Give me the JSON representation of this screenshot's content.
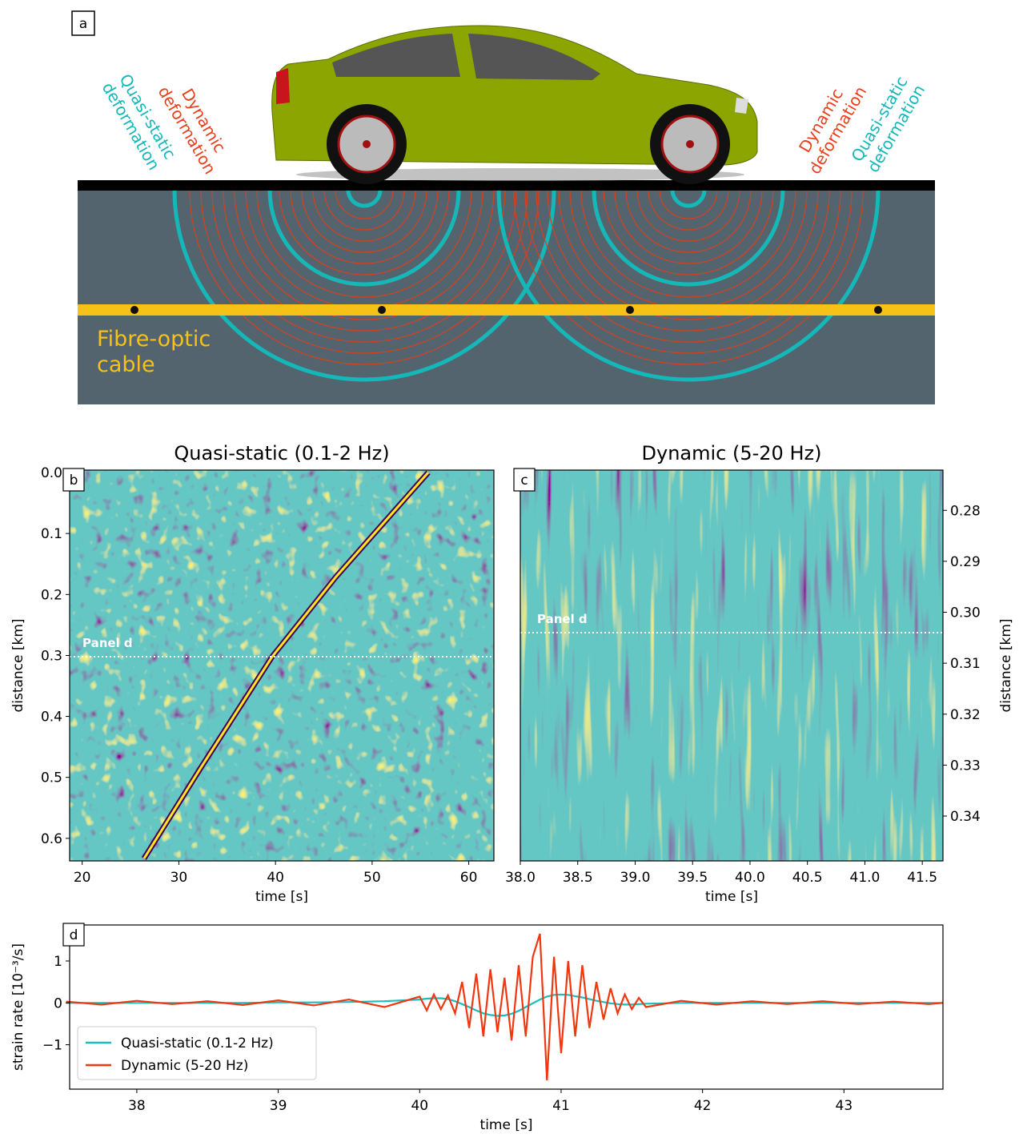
{
  "diagram": {
    "panel_label": "a",
    "left_quasi_static": [
      "Quasi-static",
      "deformation"
    ],
    "left_dynamic": [
      "Dynamic",
      "deformation"
    ],
    "right_dynamic": [
      "Dynamic",
      "deformation"
    ],
    "right_quasi_static": [
      "Quasi-static",
      "deformation"
    ],
    "cable": [
      "Fibre-optic",
      "cable"
    ]
  },
  "chart_data": [
    {
      "type": "heatmap",
      "panel_label": "b",
      "title": "Quasi-static (0.1-2 Hz)",
      "x_label": "time [s]",
      "y_label": "distance [km]",
      "xlim": [
        18.7,
        62.6
      ],
      "xticks": [
        20,
        30,
        40,
        50,
        60
      ],
      "ylim": [
        0.637,
        -0.004
      ],
      "yticks": [
        {
          "value": 0,
          "label": "0.0"
        },
        0.1,
        0.2,
        0.3,
        0.4,
        0.5,
        0.6
      ],
      "y_axis_side": "left",
      "hline": 0.302,
      "annotation": "Panel d"
    },
    {
      "type": "heatmap",
      "panel_label": "c",
      "title": "Dynamic (5-20 Hz)",
      "x_label": "time [s]",
      "y_label": "distance [km]",
      "xlim": [
        38.0,
        41.68
      ],
      "xticks": [
        {
          "value": 38,
          "label": "38.0"
        },
        38.5,
        {
          "value": 39,
          "label": "39.0"
        },
        39.5,
        {
          "value": 40,
          "label": "40.0"
        },
        40.5,
        {
          "value": 41,
          "label": "41.0"
        },
        41.5
      ],
      "ylim": [
        0.3488,
        0.2721
      ],
      "yticks": [
        0.28,
        0.29,
        {
          "value": 0.3,
          "label": "0.30"
        },
        0.31,
        0.32,
        0.33,
        0.34
      ],
      "y_axis_side": "right",
      "hline": 0.304,
      "annotation": "Panel d"
    },
    {
      "type": "line",
      "panel_label": "d",
      "x_label": "time [s]",
      "y_label": "strain rate [10⁻³/s]",
      "xlim": [
        37.525,
        43.7
      ],
      "xticks": [
        38,
        39,
        40,
        41,
        42,
        43
      ],
      "ylim": [
        -2.06,
        1.86
      ],
      "yticks": [
        {
          "value": -1,
          "label": "−1"
        },
        0,
        1
      ],
      "legend": "lower left",
      "x": [
        37.5,
        37.75,
        38.0,
        38.25,
        38.5,
        38.75,
        39.0,
        39.25,
        39.5,
        39.75,
        40.0,
        40.05,
        40.1,
        40.15,
        40.2,
        40.25,
        40.3,
        40.35,
        40.4,
        40.45,
        40.5,
        40.55,
        40.6,
        40.65,
        40.7,
        40.75,
        40.8,
        40.85,
        40.9,
        40.95,
        41.0,
        41.05,
        41.1,
        41.15,
        41.2,
        41.25,
        41.3,
        41.35,
        41.4,
        41.45,
        41.5,
        41.55,
        41.6,
        41.85,
        42.1,
        42.35,
        42.6,
        42.85,
        43.1,
        43.35,
        43.6,
        43.7
      ],
      "series": [
        {
          "name": "Quasi-static (0.1-2 Hz)",
          "color": "#1bbcc0",
          "values": [
            0,
            0,
            0,
            0,
            0,
            0,
            0.01,
            0.01,
            0.02,
            0.04,
            0.08,
            0.1,
            0.11,
            0.11,
            0.09,
            0.04,
            -0.03,
            -0.1,
            -0.18,
            -0.25,
            -0.29,
            -0.31,
            -0.3,
            -0.26,
            -0.19,
            -0.1,
            -0.01,
            0.08,
            0.15,
            0.19,
            0.2,
            0.19,
            0.16,
            0.13,
            0.09,
            0.05,
            0.02,
            -0.01,
            -0.03,
            -0.04,
            -0.04,
            -0.03,
            -0.02,
            0,
            0,
            0,
            0,
            0,
            0,
            0,
            0,
            0
          ]
        },
        {
          "name": "Dynamic (5-20 Hz)",
          "color": "#f0370f",
          "values": [
            0.03,
            -0.04,
            0.05,
            -0.03,
            0.04,
            -0.05,
            0.06,
            -0.06,
            0.08,
            -0.1,
            0.15,
            -0.18,
            0.2,
            -0.15,
            0.18,
            -0.25,
            0.5,
            -0.6,
            0.7,
            -0.8,
            0.8,
            -0.7,
            0.6,
            -0.9,
            0.9,
            -0.8,
            1.1,
            1.65,
            -1.85,
            1.1,
            -1.2,
            1.0,
            -0.8,
            0.9,
            -0.6,
            0.5,
            -0.4,
            0.35,
            -0.25,
            0.2,
            -0.15,
            0.12,
            -0.1,
            0.05,
            -0.04,
            0.04,
            -0.03,
            0.04,
            -0.03,
            0.03,
            -0.03,
            0.0
          ]
        }
      ]
    }
  ]
}
